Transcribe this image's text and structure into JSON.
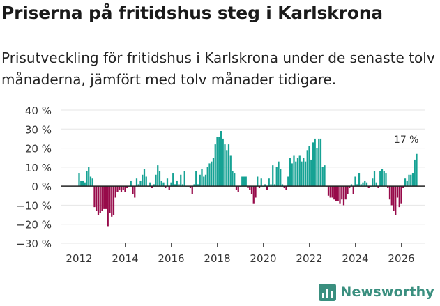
{
  "header": {
    "title": "Priserna på fritidshus steg i Karlskrona",
    "subtitle": "Prisutveckling för fritidshus i Karlskrona under de senaste tolv månaderna, jämfört med tolv månader tidigare."
  },
  "brand": {
    "name": "Newsworthy",
    "logo_icon": "newsworthy-chart-icon",
    "color": "#3a8f7f"
  },
  "colors": {
    "positive": "#16a294",
    "negative": "#970a4a",
    "zero_line": "#222222",
    "grid": "#e6e6e6",
    "text": "#333333"
  },
  "chart_data": {
    "type": "bar",
    "title": "Priserna på fritidshus steg i Karlskrona",
    "ylabel": "",
    "xlabel": "",
    "ylim": [
      -30,
      40
    ],
    "y_ticks": [
      40,
      30,
      20,
      10,
      0,
      -10,
      -20,
      -30
    ],
    "y_tick_labels": [
      "40 %",
      "30 %",
      "20 %",
      "10 %",
      "0 %",
      "−10 %",
      "−20 %",
      "−30 %"
    ],
    "x_ticks": [
      2012,
      2014,
      2016,
      2018,
      2020,
      2022,
      2024,
      2026
    ],
    "x_tick_labels": [
      "2012",
      "2014",
      "2016",
      "2018",
      "2020",
      "2022",
      "2024",
      "2026"
    ],
    "grid": true,
    "start": "2012-01",
    "frequency": "monthly",
    "values": [
      7,
      3,
      3,
      2,
      8,
      10,
      5,
      4,
      -11,
      -13,
      -15,
      -14,
      -13,
      -12,
      -12,
      -21,
      -14,
      -16,
      -15,
      -6,
      -3,
      -2,
      -3,
      -2,
      -3,
      -1,
      0,
      3,
      -4,
      -6,
      4,
      1,
      3,
      6,
      9,
      5,
      0,
      2,
      -1,
      1,
      6,
      11,
      8,
      3,
      2,
      -1,
      4,
      -2,
      2,
      7,
      1,
      3,
      1,
      6,
      1,
      8,
      0,
      0,
      -1,
      -4,
      1,
      8,
      1,
      6,
      9,
      5,
      6,
      10,
      12,
      13,
      15,
      22,
      26,
      26,
      29,
      25,
      22,
      19,
      22,
      16,
      8,
      7,
      -2,
      -3,
      0,
      5,
      5,
      5,
      -1,
      -2,
      -4,
      -9,
      -6,
      5,
      -1,
      4,
      0,
      1,
      -2,
      4,
      1,
      11,
      1,
      10,
      13,
      9,
      1,
      -1,
      -2,
      5,
      15,
      12,
      16,
      13,
      15,
      16,
      13,
      15,
      13,
      19,
      21,
      14,
      23,
      25,
      20,
      25,
      25,
      10,
      11,
      0,
      -5,
      -6,
      -6,
      -7,
      -8,
      -8,
      -9,
      -7,
      -10,
      -7,
      -4,
      -1,
      1,
      -4,
      5,
      1,
      7,
      1,
      2,
      3,
      2,
      -1,
      0,
      4,
      8,
      2,
      -1,
      8,
      9,
      8,
      7,
      -1,
      -7,
      -10,
      -13,
      -15,
      -6,
      -11,
      -9,
      -1,
      4,
      3,
      6,
      6,
      7,
      14,
      17
    ],
    "annotation": {
      "text": "17 %",
      "target": "last_value"
    }
  }
}
